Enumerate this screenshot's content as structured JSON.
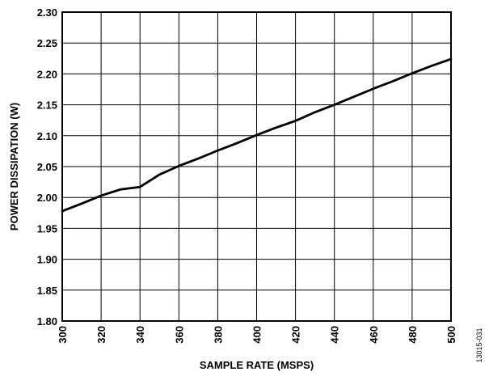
{
  "chart_data": {
    "type": "line",
    "xlabel": "SAMPLE RATE (MSPS)",
    "ylabel": "POWER DISSIPATION (W)",
    "xlim": [
      300,
      500
    ],
    "ylim": [
      1.8,
      2.3
    ],
    "x_ticks": [
      "300",
      "320",
      "340",
      "360",
      "380",
      "400",
      "420",
      "440",
      "460",
      "480",
      "500"
    ],
    "y_ticks": [
      "1.80",
      "1.85",
      "1.90",
      "1.95",
      "2.00",
      "2.05",
      "2.10",
      "2.15",
      "2.20",
      "2.25",
      "2.30"
    ],
    "grid": true,
    "series": [
      {
        "x": [
          300,
          310,
          320,
          330,
          340,
          350,
          360,
          370,
          380,
          390,
          400,
          410,
          420,
          430,
          440,
          450,
          460,
          470,
          480,
          490,
          500
        ],
        "y": [
          1.978,
          1.99,
          2.003,
          2.013,
          2.017,
          2.037,
          2.051,
          2.063,
          2.076,
          2.088,
          2.101,
          2.113,
          2.124,
          2.138,
          2.15,
          2.163,
          2.176,
          2.188,
          2.201,
          2.213,
          2.224
        ]
      }
    ],
    "figure_id": "13015-031"
  }
}
